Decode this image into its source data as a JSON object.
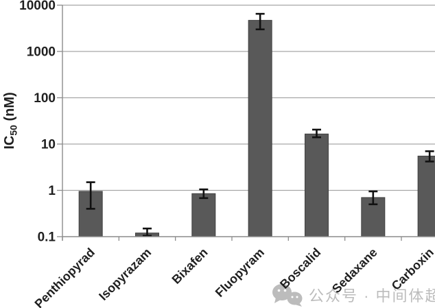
{
  "watermark": {
    "icon": "wechat-icon",
    "text": "公众号 · 中间体超市",
    "color": "#bcbcbc"
  },
  "chart_data": {
    "type": "bar",
    "title": "",
    "xlabel": "",
    "ylabel": "IC50 (nM)",
    "ylabel_parts": {
      "pre": "IC",
      "sub": "50",
      "post": " (nM)"
    },
    "y_scale": "log",
    "ylim": [
      0.1,
      10000
    ],
    "yticks": [
      {
        "value": 0.1,
        "label": "0.1"
      },
      {
        "value": 1,
        "label": "1"
      },
      {
        "value": 10,
        "label": "10"
      },
      {
        "value": 100,
        "label": "100"
      },
      {
        "value": 1000,
        "label": "1000"
      },
      {
        "value": 10000,
        "label": "10000"
      }
    ],
    "grid": "horizontal",
    "legend": "none",
    "bar_color": "#595959",
    "bar_border_color": "#404040",
    "gridline_color": "#a6a6a6",
    "axis_color": "#8c8c8c",
    "text_color": "#1f1f1f",
    "error_bar_color": "#111111",
    "categories": [
      "Penthiopyrad",
      "Isopyrazam",
      "Bixafen",
      "Fluopyram",
      "Boscalid",
      "Sedaxane",
      "Carboxin"
    ],
    "values": [
      0.95,
      0.12,
      0.85,
      4700,
      16.5,
      0.7,
      5.5
    ],
    "error_low": [
      0.4,
      0.105,
      0.68,
      3000,
      14,
      0.5,
      4.2
    ],
    "error_high": [
      1.5,
      0.15,
      1.05,
      6500,
      20.5,
      0.95,
      7.0
    ]
  }
}
